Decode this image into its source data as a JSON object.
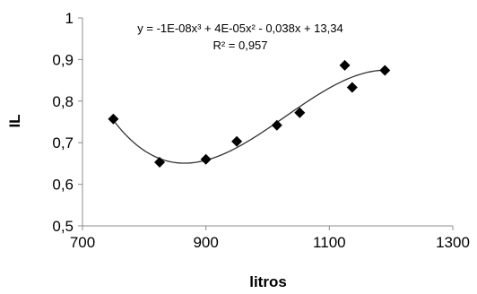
{
  "chart_data": {
    "type": "scatter",
    "title": "",
    "xlabel": "litros",
    "ylabel": "IL",
    "xlim": [
      700,
      1300
    ],
    "ylim": [
      0.5,
      1.0
    ],
    "x_ticks": [
      700,
      900,
      1100,
      1300
    ],
    "x_tick_labels": [
      "700",
      "900",
      "1100",
      "1300"
    ],
    "y_ticks": [
      0.5,
      0.6,
      0.7,
      0.8,
      0.9,
      1.0
    ],
    "y_tick_labels": [
      "0,5",
      "0,6",
      "0,7",
      "0,8",
      "0,9",
      "1"
    ],
    "grid": false,
    "legend": "none",
    "marker": "diamond",
    "marker_color": "#000000",
    "series": [
      {
        "points": [
          {
            "x": 750,
            "y": 0.757
          },
          {
            "x": 825,
            "y": 0.653
          },
          {
            "x": 900,
            "y": 0.66
          },
          {
            "x": 950,
            "y": 0.703
          },
          {
            "x": 1015,
            "y": 0.742
          },
          {
            "x": 1052,
            "y": 0.772
          },
          {
            "x": 1125,
            "y": 0.886
          },
          {
            "x": 1137,
            "y": 0.833
          },
          {
            "x": 1190,
            "y": 0.874
          }
        ]
      }
    ],
    "trendline": {
      "type": "polynomial",
      "order": 3,
      "x_range": [
        750,
        1190
      ],
      "equation_text": "y = -1E-08x³ + 4E-05x² - 0,038x + 13,34",
      "r2_text": "R² = 0,957"
    }
  }
}
